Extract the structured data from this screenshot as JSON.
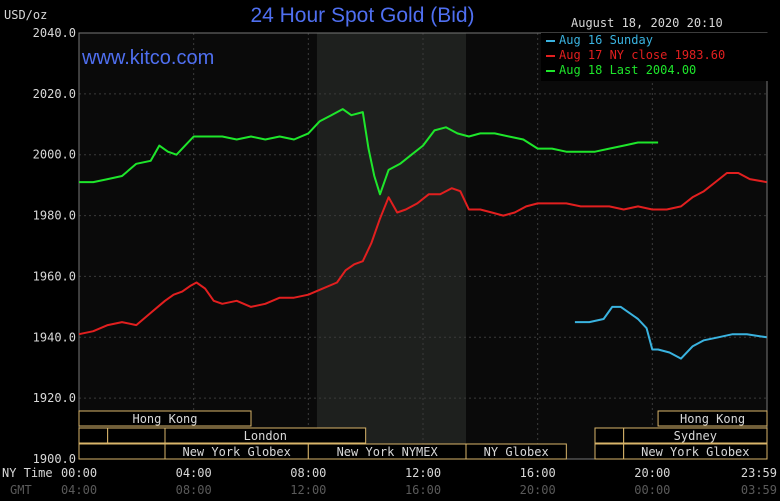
{
  "header": {
    "title": "24 Hour Spot Gold (Bid)",
    "unit": "USD/oz",
    "timestamp": "August 18, 2020 20:10",
    "website": "www.kitco.com"
  },
  "legend": [
    {
      "text": "Aug 16 Sunday",
      "color": "#3ab3e0"
    },
    {
      "text": "Aug 17 NY close 1983.60",
      "color": "#e21f1f"
    },
    {
      "text": "Aug 18 Last 2004.00",
      "color": "#1ee62b"
    }
  ],
  "axis": {
    "ny_time_label": "NY Time",
    "gmt_label": "GMT"
  },
  "sessions": [
    {
      "name": "Hong Kong",
      "row": 0,
      "start": 0,
      "end": 6
    },
    {
      "name": "",
      "row": 1,
      "start": 0,
      "end": 1
    },
    {
      "name": "",
      "row": 1,
      "start": 1,
      "end": 3
    },
    {
      "name": "London",
      "row": 1,
      "start": 3,
      "end": 10
    },
    {
      "name": "",
      "row": 2,
      "start": 0,
      "end": 3
    },
    {
      "name": "New York Globex",
      "row": 2,
      "start": 3,
      "end": 8
    },
    {
      "name": "New York NYMEX",
      "row": 2,
      "start": 8,
      "end": 13.5
    },
    {
      "name": "NY Globex",
      "row": 2,
      "start": 13.5,
      "end": 17
    },
    {
      "name": "Hong Kong",
      "row": 0,
      "start": 20.2,
      "end": 24
    },
    {
      "name": "",
      "row": 1,
      "start": 18,
      "end": 19
    },
    {
      "name": "Sydney",
      "row": 1,
      "start": 19,
      "end": 24
    },
    {
      "name": "",
      "row": 2,
      "start": 18,
      "end": 19
    },
    {
      "name": "New York Globex",
      "row": 2,
      "start": 19,
      "end": 24
    }
  ],
  "chart_data": {
    "type": "line",
    "title": "24 Hour Spot Gold (Bid)",
    "ylabel": "USD/oz",
    "ylim": [
      1900,
      2040
    ],
    "xlim": [
      0,
      24
    ],
    "y_ticks": [
      "2040.0",
      "2020.0",
      "2000.0",
      "1980.0",
      "1960.0",
      "1940.0",
      "1920.0",
      "1900.0"
    ],
    "x_ticks_ny": [
      "00:00",
      "04:00",
      "08:00",
      "12:00",
      "16:00",
      "20:00",
      "23:59"
    ],
    "x_ticks_gmt": [
      "04:00",
      "08:00",
      "12:00",
      "16:00",
      "20:00",
      "00:00",
      "03:59"
    ],
    "highlight_range": [
      8.3,
      13.5
    ],
    "grid": true,
    "series": [
      {
        "name": "Aug 16 Sunday",
        "color": "#3ab3e0",
        "x": [
          17.3,
          17.8,
          18.3,
          18.6,
          18.9,
          19.2,
          19.5,
          19.8,
          20.0,
          20.2,
          20.6,
          21.0,
          21.4,
          21.8,
          22.3,
          22.8,
          23.3,
          23.99
        ],
        "y": [
          1945,
          1945,
          1946,
          1950,
          1950,
          1948,
          1946,
          1943,
          1936,
          1936,
          1935,
          1933,
          1937,
          1939,
          1940,
          1941,
          1941,
          1940
        ]
      },
      {
        "name": "Aug 17 NY close 1983.60",
        "color": "#e21f1f",
        "x": [
          0,
          0.5,
          1.0,
          1.5,
          2.0,
          2.5,
          3.0,
          3.3,
          3.6,
          3.9,
          4.1,
          4.4,
          4.7,
          5.0,
          5.5,
          6.0,
          6.5,
          7.0,
          7.5,
          8.0,
          8.5,
          9.0,
          9.3,
          9.6,
          9.9,
          10.2,
          10.5,
          10.8,
          11.1,
          11.4,
          11.8,
          12.2,
          12.6,
          13.0,
          13.3,
          13.6,
          14.0,
          14.4,
          14.8,
          15.2,
          15.6,
          16.0,
          16.5,
          17.0,
          17.5,
          18.0,
          18.5,
          19.0,
          19.5,
          20.0,
          20.5,
          21.0,
          21.4,
          21.8,
          22.2,
          22.6,
          23.0,
          23.4,
          23.99
        ],
        "y": [
          1941,
          1942,
          1944,
          1945,
          1944,
          1948,
          1952,
          1954,
          1955,
          1957,
          1958,
          1956,
          1952,
          1951,
          1952,
          1950,
          1951,
          1953,
          1953,
          1954,
          1956,
          1958,
          1962,
          1964,
          1965,
          1971,
          1979,
          1986,
          1981,
          1982,
          1984,
          1987,
          1987,
          1989,
          1988,
          1982,
          1982,
          1981,
          1980,
          1981,
          1983,
          1984,
          1984,
          1984,
          1983,
          1983,
          1983,
          1982,
          1983,
          1982,
          1982,
          1983,
          1986,
          1988,
          1991,
          1994,
          1994,
          1992,
          1991
        ]
      },
      {
        "name": "Aug 18 Last 2004.00",
        "color": "#1ee62b",
        "x": [
          0,
          0.5,
          1.0,
          1.5,
          2.0,
          2.5,
          2.8,
          3.1,
          3.4,
          3.7,
          4.0,
          4.5,
          5.0,
          5.5,
          6.0,
          6.5,
          7.0,
          7.5,
          8.0,
          8.4,
          8.8,
          9.2,
          9.5,
          9.9,
          10.1,
          10.3,
          10.5,
          10.8,
          11.2,
          11.6,
          12.0,
          12.4,
          12.8,
          13.2,
          13.6,
          14.0,
          14.5,
          15.0,
          15.5,
          16.0,
          16.5,
          17.0,
          17.5,
          18.0,
          18.5,
          19.0,
          19.5,
          20.0,
          20.2
        ],
        "y": [
          1991,
          1991,
          1992,
          1993,
          1997,
          1998,
          2003,
          2001,
          2000,
          2003,
          2006,
          2006,
          2006,
          2005,
          2006,
          2005,
          2006,
          2005,
          2007,
          2011,
          2013,
          2015,
          2013,
          2014,
          2002,
          1993,
          1987,
          1995,
          1997,
          2000,
          2003,
          2008,
          2009,
          2007,
          2006,
          2007,
          2007,
          2006,
          2005,
          2002,
          2002,
          2001,
          2001,
          2001,
          2002,
          2003,
          2004,
          2004,
          2004
        ]
      }
    ]
  }
}
